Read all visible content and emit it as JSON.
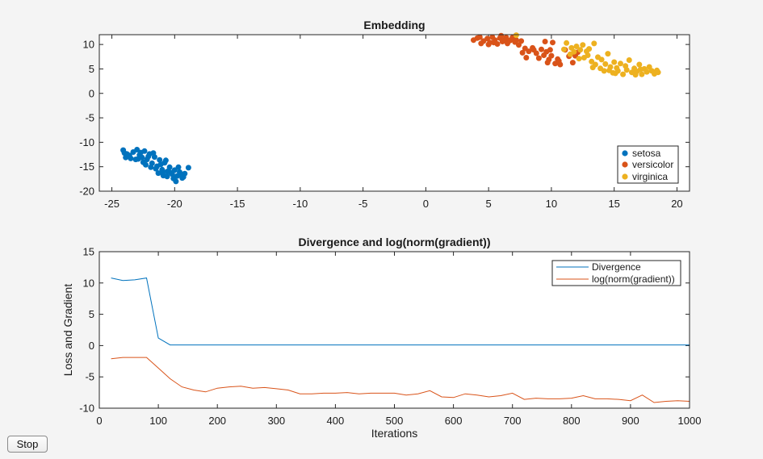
{
  "stop_button": "Stop",
  "colors": {
    "setosa": "#0072BD",
    "versicolor": "#D95319",
    "virginica": "#EDB120",
    "divergence": "#0072BD",
    "gradient": "#D95319"
  },
  "chart_data": [
    {
      "type": "scatter",
      "title": "Embedding",
      "xlabel": "",
      "ylabel": "",
      "xlim": [
        -26,
        21
      ],
      "ylim": [
        -20,
        12
      ],
      "xticks": [
        -25,
        -20,
        -15,
        -10,
        -5,
        0,
        5,
        10,
        15,
        20
      ],
      "yticks": [
        -20,
        -15,
        -10,
        -5,
        0,
        5,
        10
      ],
      "grid": false,
      "legend_position": "bottom-right",
      "series": [
        {
          "name": "setosa",
          "points": [
            [
              -24.1,
              -11.6
            ],
            [
              -23.8,
              -12.4
            ],
            [
              -23.5,
              -13.3
            ],
            [
              -23.3,
              -12.0
            ],
            [
              -23.0,
              -11.5
            ],
            [
              -22.8,
              -12.6
            ],
            [
              -22.6,
              -13.1
            ],
            [
              -22.4,
              -11.8
            ],
            [
              -22.2,
              -13.5
            ],
            [
              -22.0,
              -12.4
            ],
            [
              -21.8,
              -14.3
            ],
            [
              -21.6,
              -13.0
            ],
            [
              -21.4,
              -14.9
            ],
            [
              -21.2,
              -13.6
            ],
            [
              -21.0,
              -15.6
            ],
            [
              -20.8,
              -14.2
            ],
            [
              -20.6,
              -16.0
            ],
            [
              -20.4,
              -15.1
            ],
            [
              -20.2,
              -16.5
            ],
            [
              -20.0,
              -15.7
            ],
            [
              -19.8,
              -16.9
            ],
            [
              -19.6,
              -16.1
            ],
            [
              -19.4,
              -17.3
            ],
            [
              -19.2,
              -16.4
            ],
            [
              -18.9,
              -15.2
            ],
            [
              -22.3,
              -14.6
            ],
            [
              -21.9,
              -15.1
            ],
            [
              -21.3,
              -16.3
            ],
            [
              -20.9,
              -16.8
            ],
            [
              -20.1,
              -17.4
            ],
            [
              -19.9,
              -18.0
            ],
            [
              -23.6,
              -12.7
            ],
            [
              -22.9,
              -13.4
            ],
            [
              -21.7,
              -12.2
            ],
            [
              -20.7,
              -13.7
            ],
            [
              -20.5,
              -15.9
            ],
            [
              -19.7,
              -15.1
            ],
            [
              -19.5,
              -16.7
            ],
            [
              -23.1,
              -13.5
            ],
            [
              -21.1,
              -14.5
            ],
            [
              -22.5,
              -14.1
            ],
            [
              -21.5,
              -15.4
            ],
            [
              -20.3,
              -16.2
            ],
            [
              -23.9,
              -13.1
            ],
            [
              -22.1,
              -12.9
            ],
            [
              -21.0,
              -16.1
            ],
            [
              -19.3,
              -17.1
            ],
            [
              -20.6,
              -17.0
            ],
            [
              -22.7,
              -12.1
            ],
            [
              -24.0,
              -12.2
            ]
          ]
        },
        {
          "name": "versicolor",
          "points": [
            [
              3.8,
              10.9
            ],
            [
              4.1,
              11.3
            ],
            [
              4.6,
              10.7
            ],
            [
              4.9,
              11.2
            ],
            [
              5.1,
              10.4
            ],
            [
              5.3,
              11.5
            ],
            [
              5.5,
              10.9
            ],
            [
              5.7,
              10.1
            ],
            [
              5.9,
              11.3
            ],
            [
              6.1,
              10.6
            ],
            [
              6.3,
              11.0
            ],
            [
              6.5,
              10.2
            ],
            [
              6.7,
              10.8
            ],
            [
              6.9,
              11.4
            ],
            [
              7.1,
              10.5
            ],
            [
              7.4,
              9.9
            ],
            [
              7.6,
              10.7
            ],
            [
              7.9,
              9.2
            ],
            [
              8.2,
              8.6
            ],
            [
              8.5,
              9.3
            ],
            [
              8.8,
              8.2
            ],
            [
              9.0,
              7.2
            ],
            [
              9.2,
              9.0
            ],
            [
              9.4,
              7.8
            ],
            [
              9.6,
              8.5
            ],
            [
              9.8,
              6.9
            ],
            [
              10.0,
              7.7
            ],
            [
              10.1,
              10.4
            ],
            [
              10.3,
              6.1
            ],
            [
              10.5,
              7.0
            ],
            [
              10.7,
              5.9
            ],
            [
              11.1,
              8.9
            ],
            [
              11.4,
              7.6
            ],
            [
              11.7,
              6.3
            ],
            [
              12.1,
              8.4
            ],
            [
              9.5,
              10.6
            ],
            [
              5.0,
              10.0
            ],
            [
              6.0,
              11.8
            ],
            [
              4.4,
              10.2
            ],
            [
              8.0,
              7.3
            ],
            [
              9.7,
              6.3
            ],
            [
              11.9,
              7.7
            ],
            [
              8.6,
              8.9
            ],
            [
              7.2,
              10.9
            ],
            [
              6.4,
              11.4
            ],
            [
              5.4,
              10.4
            ],
            [
              4.3,
              11.5
            ],
            [
              9.9,
              8.9
            ],
            [
              10.6,
              6.6
            ],
            [
              7.7,
              8.3
            ]
          ]
        },
        {
          "name": "virginica",
          "points": [
            [
              7.2,
              11.9
            ],
            [
              11.2,
              10.3
            ],
            [
              11.6,
              9.3
            ],
            [
              11.8,
              8.5
            ],
            [
              12.0,
              9.6
            ],
            [
              12.3,
              8.9
            ],
            [
              12.5,
              9.9
            ],
            [
              12.6,
              7.3
            ],
            [
              12.8,
              8.6
            ],
            [
              13.0,
              9.1
            ],
            [
              13.2,
              6.5
            ],
            [
              13.4,
              10.2
            ],
            [
              13.5,
              5.9
            ],
            [
              13.7,
              7.4
            ],
            [
              13.9,
              5.1
            ],
            [
              14.0,
              6.9
            ],
            [
              14.2,
              4.6
            ],
            [
              14.3,
              6.0
            ],
            [
              14.5,
              8.1
            ],
            [
              14.7,
              5.4
            ],
            [
              14.9,
              4.2
            ],
            [
              15.0,
              6.4
            ],
            [
              15.2,
              5.2
            ],
            [
              15.3,
              4.6
            ],
            [
              15.5,
              6.1
            ],
            [
              15.7,
              3.9
            ],
            [
              15.9,
              5.6
            ],
            [
              16.0,
              4.8
            ],
            [
              16.2,
              6.8
            ],
            [
              16.4,
              4.3
            ],
            [
              16.6,
              5.1
            ],
            [
              16.8,
              4.5
            ],
            [
              17.0,
              5.9
            ],
            [
              17.2,
              3.9
            ],
            [
              17.4,
              5.0
            ],
            [
              17.6,
              4.4
            ],
            [
              17.8,
              5.4
            ],
            [
              18.0,
              4.6
            ],
            [
              18.2,
              4.0
            ],
            [
              18.5,
              4.3
            ],
            [
              11.0,
              9.0
            ],
            [
              12.9,
              7.8
            ],
            [
              14.6,
              4.7
            ],
            [
              16.7,
              3.8
            ],
            [
              15.1,
              4.1
            ],
            [
              13.3,
              5.3
            ],
            [
              11.5,
              8.0
            ],
            [
              12.2,
              7.1
            ],
            [
              17.1,
              4.9
            ],
            [
              18.4,
              4.7
            ]
          ]
        }
      ]
    },
    {
      "type": "line",
      "title": "Divergence and log(norm(gradient))",
      "xlabel": "Iterations",
      "ylabel": "Loss and Gradient",
      "xlim": [
        0,
        1000
      ],
      "ylim": [
        -10,
        15
      ],
      "xticks": [
        0,
        100,
        200,
        300,
        400,
        500,
        600,
        700,
        800,
        900,
        1000
      ],
      "yticks": [
        -10,
        -5,
        0,
        5,
        10,
        15
      ],
      "grid": false,
      "legend_position": "top-right",
      "x": [
        20,
        40,
        60,
        80,
        100,
        120,
        140,
        160,
        180,
        200,
        220,
        240,
        260,
        280,
        300,
        320,
        340,
        360,
        380,
        400,
        420,
        440,
        460,
        480,
        500,
        520,
        540,
        560,
        580,
        600,
        620,
        640,
        660,
        680,
        700,
        720,
        740,
        760,
        780,
        800,
        820,
        840,
        860,
        880,
        900,
        920,
        940,
        960,
        980,
        1000
      ],
      "series": [
        {
          "name": "Divergence",
          "values": [
            10.8,
            10.4,
            10.5,
            10.8,
            1.2,
            0.1,
            0.1,
            0.1,
            0.1,
            0.1,
            0.1,
            0.1,
            0.1,
            0.1,
            0.1,
            0.1,
            0.1,
            0.1,
            0.1,
            0.1,
            0.1,
            0.1,
            0.1,
            0.1,
            0.1,
            0.1,
            0.1,
            0.1,
            0.1,
            0.1,
            0.1,
            0.1,
            0.1,
            0.1,
            0.1,
            0.1,
            0.1,
            0.1,
            0.1,
            0.1,
            0.1,
            0.1,
            0.1,
            0.1,
            0.1,
            0.1,
            0.1,
            0.1,
            0.1,
            0.1
          ]
        },
        {
          "name": "log(norm(gradient))",
          "values": [
            -2.1,
            -1.9,
            -1.9,
            -1.9,
            -3.6,
            -5.3,
            -6.6,
            -7.1,
            -7.4,
            -6.8,
            -6.6,
            -6.5,
            -6.8,
            -6.7,
            -6.9,
            -7.1,
            -7.7,
            -7.7,
            -7.6,
            -7.6,
            -7.5,
            -7.7,
            -7.6,
            -7.6,
            -7.6,
            -7.9,
            -7.7,
            -7.2,
            -8.2,
            -8.3,
            -7.7,
            -7.9,
            -8.2,
            -8.0,
            -7.6,
            -8.6,
            -8.4,
            -8.5,
            -8.5,
            -8.4,
            -8.0,
            -8.5,
            -8.5,
            -8.6,
            -8.8,
            -7.9,
            -9.1,
            -8.9,
            -8.8,
            -8.9
          ]
        }
      ]
    }
  ]
}
